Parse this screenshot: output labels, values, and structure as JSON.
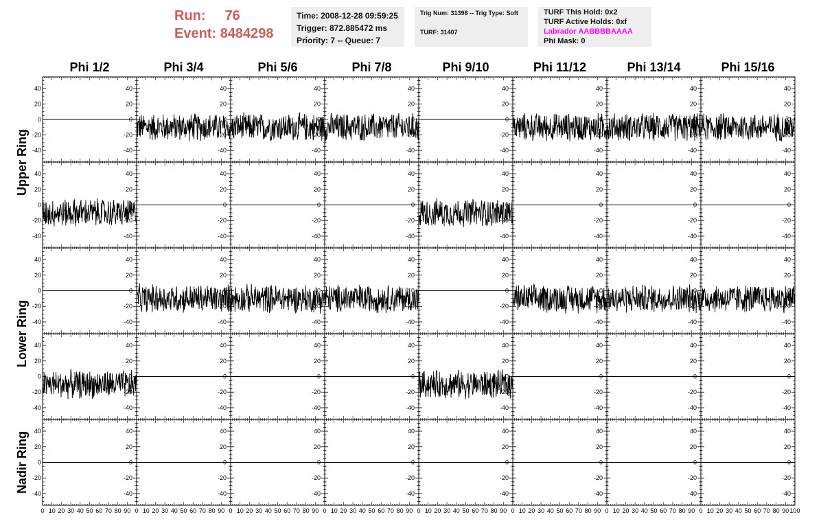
{
  "header": {
    "run_label": "Run:",
    "run_value": "76",
    "event_label": "Event:",
    "event_value": "8484298"
  },
  "time_box": {
    "time": "Time: 2008-12-28 09:59:25",
    "trigger": "Trigger: 872.885472 ms",
    "priority": "Priority: 7 -- Queue: 7"
  },
  "trig_box": {
    "trig": "Trig Num: 31398 -- Trig Type: Soft",
    "turf": "TURF: 31407"
  },
  "turf_box": {
    "this_hold": "TURF This Hold: 0x2",
    "active_holds": "TURF Active Holds: 0xf",
    "labrador": "Labrador AABBBBAAAA",
    "phi_mask": "Phi Mask: 0"
  },
  "colors": {
    "title_red": "#cd5c5c",
    "labrador_magenta": "#ff00ff",
    "box_bg": "#eeeeee"
  },
  "chart_data": {
    "type": "line",
    "columns": [
      "Phi 1/2",
      "Phi 3/4",
      "Phi 5/6",
      "Phi 7/8",
      "Phi 9/10",
      "Phi 11/12",
      "Phi 13/14",
      "Phi 15/16"
    ],
    "row_labels": [
      {
        "label": "Upper Ring",
        "rows": [
          0,
          1
        ]
      },
      {
        "label": "Lower Ring",
        "rows": [
          2,
          3
        ]
      },
      {
        "label": "Nadir Ring",
        "rows": [
          4
        ]
      }
    ],
    "xlim": [
      0,
      100
    ],
    "ylim": [
      -55,
      55
    ],
    "x_ticks": [
      0,
      10,
      20,
      30,
      40,
      50,
      60,
      70,
      80,
      90,
      100
    ],
    "y_ticks": [
      -40,
      -20,
      0,
      20,
      40
    ],
    "active_pattern": [
      [
        0,
        1,
        1,
        1,
        0,
        1,
        1,
        1
      ],
      [
        1,
        0,
        0,
        0,
        1,
        0,
        0,
        0
      ],
      [
        0,
        1,
        1,
        1,
        0,
        1,
        1,
        1
      ],
      [
        1,
        0,
        0,
        0,
        1,
        0,
        0,
        0
      ],
      [
        0,
        0,
        0,
        0,
        0,
        0,
        0,
        0
      ]
    ],
    "active_baseline": -10,
    "active_amplitude": 20,
    "flat_value": 0,
    "samples_per_trace": 260
  }
}
